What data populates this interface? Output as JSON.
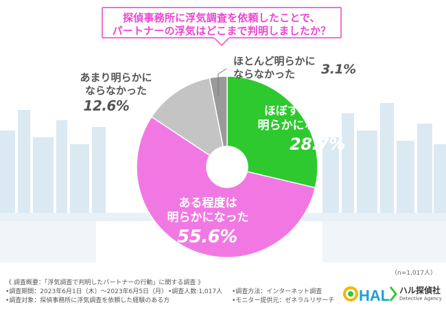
{
  "title": {
    "line1": "探偵事務所に浮気調査を依頼したことで、",
    "line2": "パートナーの浮気はどこまで判明しましたか？"
  },
  "chart_data": {
    "type": "pie",
    "donut": true,
    "categories": [
      "ほぼすべてが明らかになった",
      "ある程度は明らかになった",
      "あまり明らかにならなかった",
      "ほとんど明らかにならなかった"
    ],
    "values": [
      28.7,
      55.6,
      12.6,
      3.1
    ],
    "colors": [
      "#2ec92e",
      "#f178e3",
      "#c4c4c4",
      "#9a9a9a"
    ],
    "labels": [
      {
        "line1": "ほぼすべてが",
        "line2": "明らかになった",
        "pct": "28.7%"
      },
      {
        "line1": "ある程度は",
        "line2": "明らかになった",
        "pct": "55.6%"
      },
      {
        "line1": "あまり明らかに",
        "line2": "ならなかった",
        "pct": "12.6%"
      },
      {
        "line1": "ほとんど明らかに",
        "line2": "ならなかった",
        "pct": "3.1%"
      }
    ],
    "start": "top",
    "direction": "clockwise"
  },
  "sample_note": "（n=1,017人）",
  "footer": {
    "outline": "《 調査概要：「浮気調査で判明したパートナーの行動」に関する調査 》",
    "period": "•調査期間：2023年6月1日（木）～2023年6月5日（月）",
    "count": "•調査人数:1,017人",
    "method": "•調査方法：インターネット調査",
    "target": "•調査対象：探偵事務所に浮気調査を依頼した経験のある方",
    "provider": "•モニター提供元：ゼネラルリサーチ"
  },
  "logo": {
    "mark": "HAL",
    "name": "ハル探偵社",
    "sub": "Detective Agency",
    "colors": [
      "#f2b705",
      "#2ec92e",
      "#1aa0d8"
    ]
  }
}
